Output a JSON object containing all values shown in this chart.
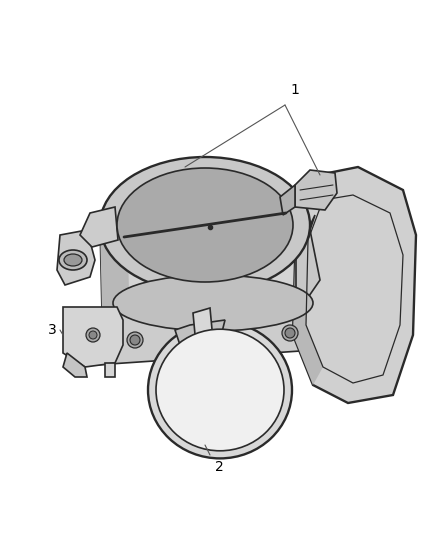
{
  "background_color": "#ffffff",
  "line_color": "#2a2a2a",
  "label_color": "#000000",
  "fig_width": 4.38,
  "fig_height": 5.33,
  "dpi": 100,
  "fill_light": "#e8e8e8",
  "fill_mid": "#d0d0d0",
  "fill_dark": "#b0b0b0",
  "fill_darkest": "#909090"
}
